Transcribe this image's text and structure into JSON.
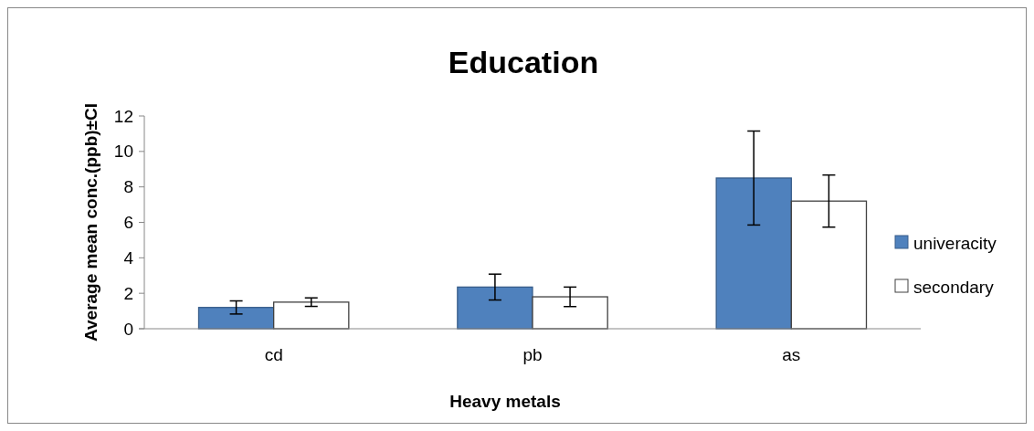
{
  "chart_data": {
    "type": "bar",
    "title": "Education",
    "xlabel": "Heavy metals",
    "ylabel": "Average mean conc.(ppb)±CI",
    "categories": [
      "cd",
      "pb",
      "as"
    ],
    "series": [
      {
        "name": "univeracity",
        "color": "#4f81bd",
        "values": [
          1.2,
          2.35,
          8.5
        ],
        "errors": [
          0.37,
          0.73,
          2.65
        ]
      },
      {
        "name": "secondary",
        "color": "#ffffff",
        "values": [
          1.5,
          1.8,
          7.2
        ],
        "errors": [
          0.24,
          0.55,
          1.47
        ]
      }
    ],
    "ylim": [
      0,
      12
    ],
    "yticks": [
      0,
      2,
      4,
      6,
      8,
      10,
      12
    ],
    "grid": false,
    "legend": "right"
  }
}
